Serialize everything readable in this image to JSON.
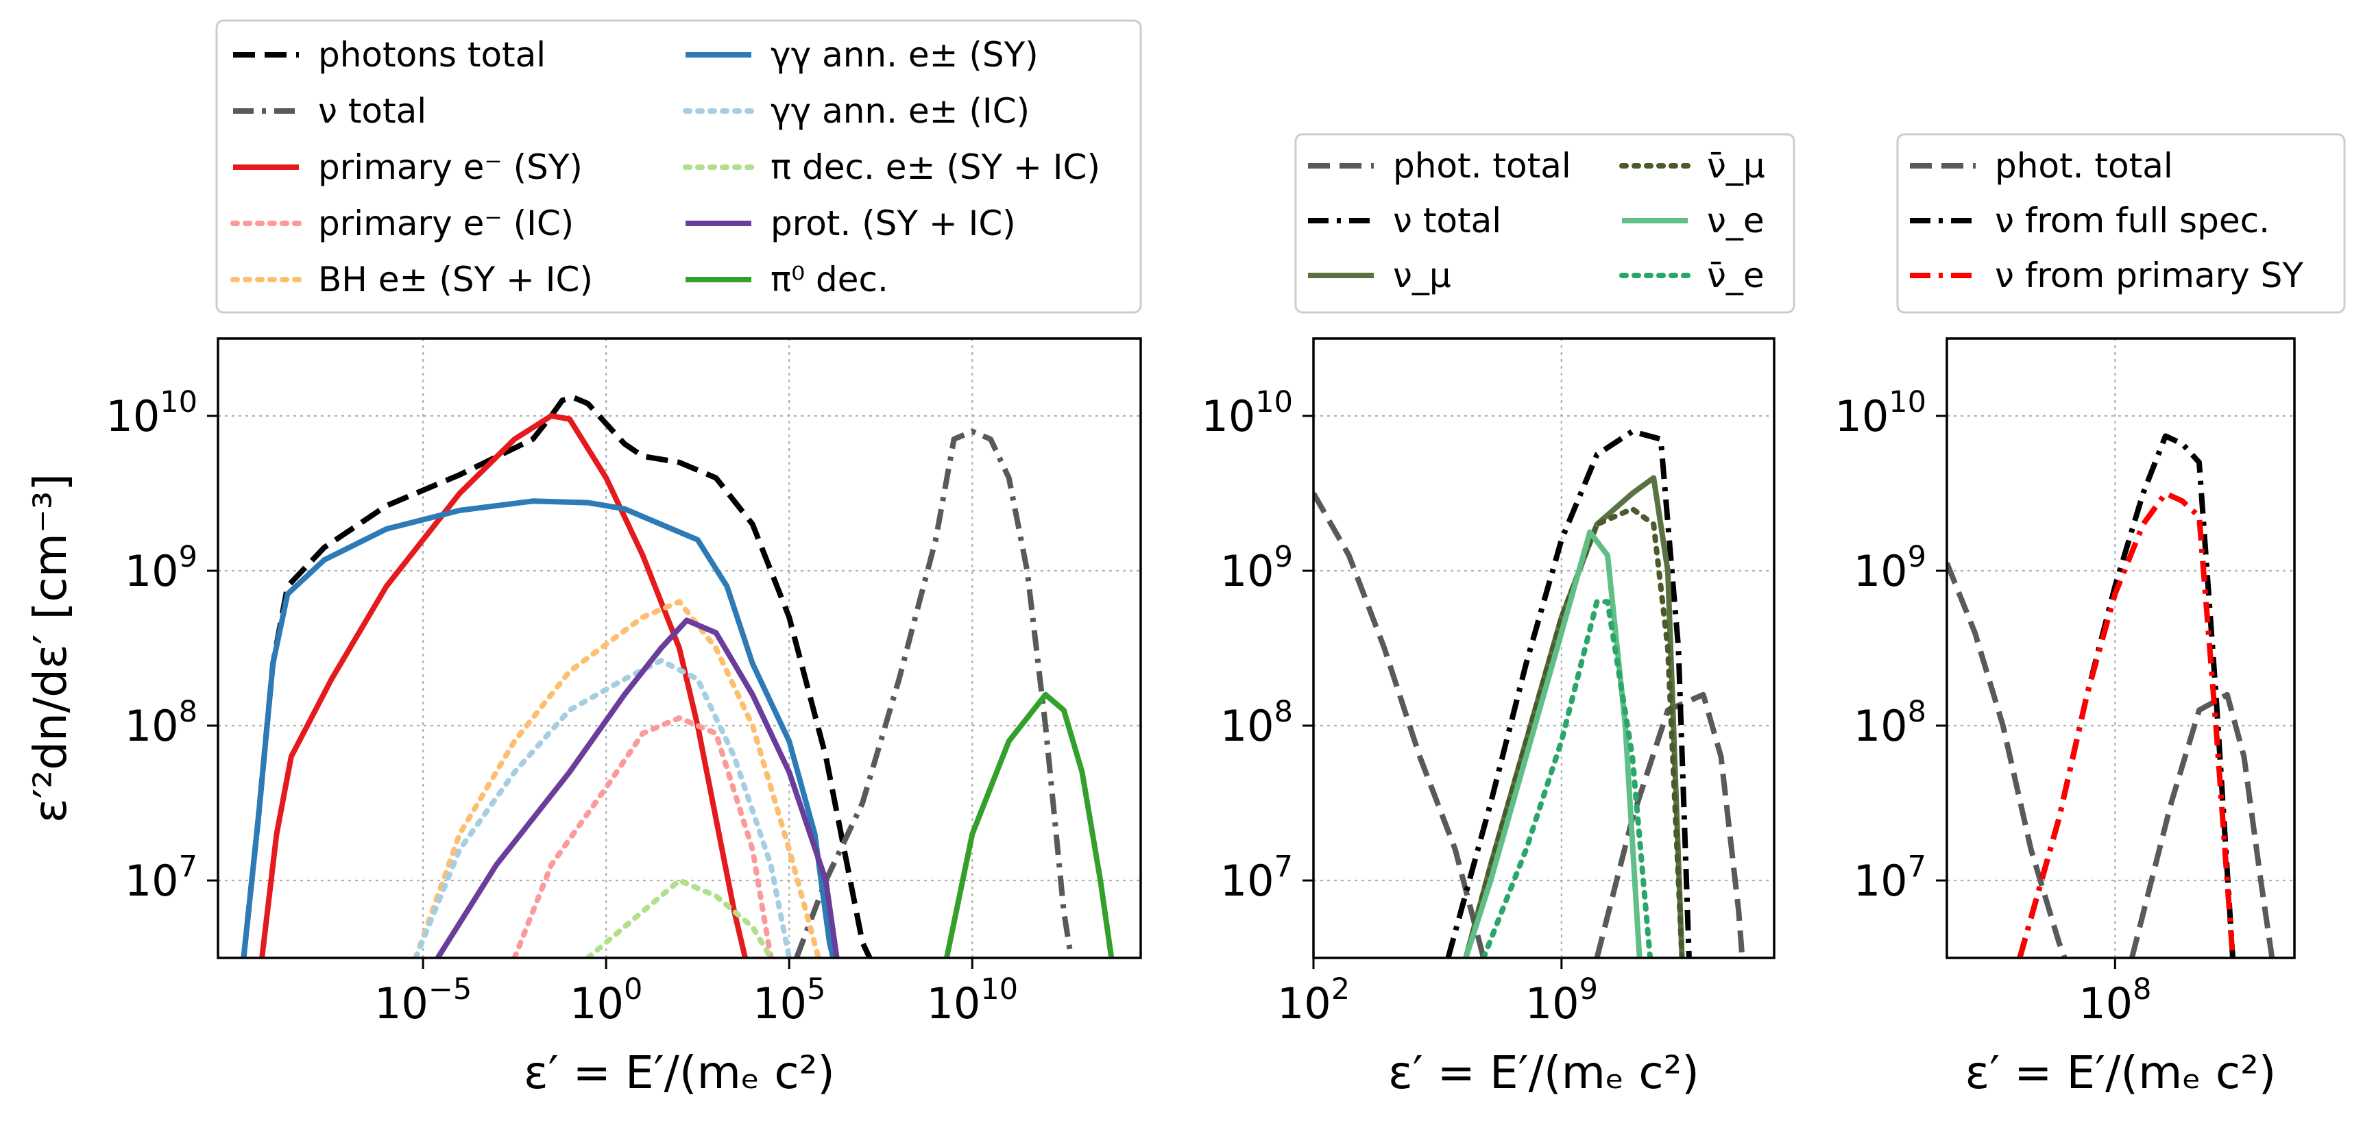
{
  "chart_data": [
    {
      "type": "line",
      "panel": "left",
      "xlabel": "ε′ = E′/(mₑ c²)",
      "ylabel": "ε′²dn/dε′ [cm⁻³]",
      "xscale": "log",
      "yscale": "log",
      "xlim_log10": [
        -10.6,
        14.6
      ],
      "ylim_log10": [
        6.5,
        10.5
      ],
      "xticks": [
        {
          "log10": -5,
          "base": "10",
          "exp": "−5"
        },
        {
          "log10": 0,
          "base": "10",
          "exp": "0"
        },
        {
          "log10": 5,
          "base": "10",
          "exp": "5"
        },
        {
          "log10": 10,
          "base": "10",
          "exp": "10"
        }
      ],
      "yticks": [
        {
          "log10": 7,
          "base": "10",
          "exp": "7"
        },
        {
          "log10": 8,
          "base": "10",
          "exp": "8"
        },
        {
          "log10": 9,
          "base": "10",
          "exp": "9"
        },
        {
          "log10": 10,
          "base": "10",
          "exp": "10"
        }
      ],
      "grid": true,
      "legend_placement": "above",
      "legend_columns": 2,
      "series": [
        {
          "name": "photons total",
          "color": "#000000",
          "style": "dashed",
          "points": [
            [
              -9.9,
              6.5
            ],
            [
              -9.5,
              7.4
            ],
            [
              -9.1,
              8.4
            ],
            [
              -8.7,
              8.9
            ],
            [
              -7.7,
              9.15
            ],
            [
              -6,
              9.42
            ],
            [
              -4,
              9.62
            ],
            [
              -2,
              9.85
            ],
            [
              -1.5,
              10
            ],
            [
              -1.2,
              10.1
            ],
            [
              -0.9,
              10.12
            ],
            [
              -0.5,
              10.08
            ],
            [
              0,
              9.95
            ],
            [
              0.5,
              9.82
            ],
            [
              1,
              9.74
            ],
            [
              2,
              9.7
            ],
            [
              3,
              9.6
            ],
            [
              4,
              9.3
            ],
            [
              5,
              8.7
            ],
            [
              6,
              7.8
            ],
            [
              6.5,
              7.2
            ],
            [
              7,
              6.6
            ],
            [
              7.2,
              6.5
            ]
          ]
        },
        {
          "name": "ν total",
          "color": "#595959",
          "style": "dashdot",
          "points": [
            [
              5.2,
              6.5
            ],
            [
              6,
              7
            ],
            [
              7,
              7.5
            ],
            [
              8,
              8.3
            ],
            [
              9,
              9.2
            ],
            [
              9.5,
              9.85
            ],
            [
              10,
              9.9
            ],
            [
              10.5,
              9.85
            ],
            [
              11,
              9.6
            ],
            [
              11.5,
              9
            ],
            [
              12,
              8
            ],
            [
              12.5,
              6.8
            ],
            [
              12.7,
              6.5
            ]
          ]
        },
        {
          "name": "primary e⁻ (SY)",
          "color": "#e41a1c",
          "style": "solid",
          "points": [
            [
              -9.4,
              6.5
            ],
            [
              -9,
              7.3
            ],
            [
              -8.6,
              7.8
            ],
            [
              -7.5,
              8.3
            ],
            [
              -6,
              8.9
            ],
            [
              -4,
              9.5
            ],
            [
              -2.5,
              9.85
            ],
            [
              -1.5,
              10
            ],
            [
              -1,
              9.98
            ],
            [
              0,
              9.6
            ],
            [
              1,
              9.1
            ],
            [
              2,
              8.5
            ],
            [
              2.5,
              8
            ],
            [
              3,
              7.4
            ],
            [
              3.5,
              6.8
            ],
            [
              3.8,
              6.5
            ]
          ]
        },
        {
          "name": "primary e⁻ (IC)",
          "color": "#fb9a99",
          "style": "dotted",
          "points": [
            [
              -2.5,
              6.5
            ],
            [
              -1.5,
              7.1
            ],
            [
              0,
              7.6
            ],
            [
              1,
              7.95
            ],
            [
              2,
              8.05
            ],
            [
              3,
              7.95
            ],
            [
              4,
              7.2
            ],
            [
              4.5,
              6.5
            ]
          ]
        },
        {
          "name": "BH e± (SY + IC)",
          "color": "#fdbf6f",
          "style": "dotted",
          "points": [
            [
              -5.2,
              6.5
            ],
            [
              -4,
              7.3
            ],
            [
              -2.5,
              7.9
            ],
            [
              -1,
              8.35
            ],
            [
              1,
              8.7
            ],
            [
              2,
              8.8
            ],
            [
              3,
              8.5
            ],
            [
              4,
              8
            ],
            [
              5,
              7.2
            ],
            [
              5.8,
              6.5
            ]
          ]
        },
        {
          "name": "γγ ann. e± (SY)",
          "color": "#2c7bb6",
          "style": "solid",
          "points": [
            [
              -9.9,
              6.5
            ],
            [
              -9.5,
              7.4
            ],
            [
              -9.1,
              8.4
            ],
            [
              -8.7,
              8.85
            ],
            [
              -7.7,
              9.07
            ],
            [
              -6,
              9.27
            ],
            [
              -4,
              9.39
            ],
            [
              -2,
              9.45
            ],
            [
              -0.5,
              9.44
            ],
            [
              0.5,
              9.4
            ],
            [
              1.5,
              9.3
            ],
            [
              2.5,
              9.2
            ],
            [
              3.3,
              8.9
            ],
            [
              4,
              8.4
            ],
            [
              5,
              7.9
            ],
            [
              5.7,
              7.3
            ],
            [
              6.1,
              6.6
            ],
            [
              6.2,
              6.5
            ]
          ]
        },
        {
          "name": "γγ ann. e± (IC)",
          "color": "#a6cee3",
          "style": "dotted",
          "points": [
            [
              -5.2,
              6.5
            ],
            [
              -4,
              7.2
            ],
            [
              -2.5,
              7.7
            ],
            [
              -1,
              8.1
            ],
            [
              0.5,
              8.3
            ],
            [
              1.5,
              8.42
            ],
            [
              2.5,
              8.3
            ],
            [
              3.5,
              7.8
            ],
            [
              4.5,
              7.1
            ],
            [
              5,
              6.5
            ]
          ]
        },
        {
          "name": "π dec. e± (SY + IC)",
          "color": "#b2df8a",
          "style": "dotted",
          "points": [
            [
              -0.5,
              6.5
            ],
            [
              1,
              6.8
            ],
            [
              2,
              7
            ],
            [
              3,
              6.9
            ],
            [
              4,
              6.7
            ],
            [
              4.5,
              6.5
            ]
          ]
        },
        {
          "name": "prot. (SY + IC)",
          "color": "#6a3d9a",
          "style": "solid",
          "points": [
            [
              -4.6,
              6.5
            ],
            [
              -3,
              7.1
            ],
            [
              -1,
              7.7
            ],
            [
              0.5,
              8.2
            ],
            [
              1.5,
              8.5
            ],
            [
              2.2,
              8.68
            ],
            [
              3,
              8.6
            ],
            [
              4,
              8.2
            ],
            [
              5,
              7.7
            ],
            [
              6,
              7
            ],
            [
              6.3,
              6.5
            ]
          ]
        },
        {
          "name": "π⁰ dec.",
          "color": "#33a02c",
          "style": "solid",
          "points": [
            [
              9.3,
              6.5
            ],
            [
              10,
              7.3
            ],
            [
              11,
              7.9
            ],
            [
              12,
              8.2
            ],
            [
              12.5,
              8.1
            ],
            [
              13,
              7.7
            ],
            [
              13.5,
              7
            ],
            [
              13.8,
              6.5
            ]
          ]
        }
      ]
    },
    {
      "type": "line",
      "panel": "middle",
      "xlabel": "ε′ = E′/(mₑ c²)",
      "xscale": "log",
      "yscale": "log",
      "xlim_log10": [
        2,
        15
      ],
      "ylim_log10": [
        6.5,
        10.5
      ],
      "xticks": [
        {
          "log10": 2,
          "base": "10",
          "exp": "2"
        },
        {
          "log10": 9,
          "base": "10",
          "exp": "9"
        }
      ],
      "yticks": [
        {
          "log10": 7,
          "base": "10",
          "exp": "7"
        },
        {
          "log10": 8,
          "base": "10",
          "exp": "8"
        },
        {
          "log10": 9,
          "base": "10",
          "exp": "9"
        },
        {
          "log10": 10,
          "base": "10",
          "exp": "10"
        }
      ],
      "grid": true,
      "legend_placement": "above",
      "legend_columns": 2,
      "series": [
        {
          "name": "phot. total",
          "color": "#595959",
          "style": "dashed",
          "points": [
            [
              2,
              9.5
            ],
            [
              3,
              9.1
            ],
            [
              4,
              8.5
            ],
            [
              5,
              7.8
            ],
            [
              6,
              7.2
            ],
            [
              6.8,
              6.5
            ]
          ],
          "points2": [
            [
              10,
              6.5
            ],
            [
              11,
              7.4
            ],
            [
              12,
              8.1
            ],
            [
              13,
              8.2
            ],
            [
              13.5,
              7.8
            ],
            [
              14,
              6.8
            ],
            [
              14.1,
              6.5
            ]
          ]
        },
        {
          "name": "ν total",
          "color": "#000000",
          "style": "dashdot",
          "points": [
            [
              5.8,
              6.5
            ],
            [
              7,
              7.5
            ],
            [
              8,
              8.4
            ],
            [
              9,
              9.2
            ],
            [
              10,
              9.75
            ],
            [
              11,
              9.9
            ],
            [
              11.8,
              9.85
            ],
            [
              12.3,
              8.5
            ],
            [
              12.6,
              6.5
            ]
          ]
        },
        {
          "name": "ν_μ",
          "color": "#5a7241",
          "style": "solid",
          "points": [
            [
              6.3,
              6.5
            ],
            [
              7,
              7.1
            ],
            [
              8,
              7.9
            ],
            [
              9,
              8.7
            ],
            [
              10,
              9.3
            ],
            [
              11,
              9.5
            ],
            [
              11.6,
              9.6
            ],
            [
              12,
              9
            ],
            [
              12.4,
              6.5
            ]
          ]
        },
        {
          "name": "ν̄_μ",
          "color": "#4a5a2a",
          "style": "dotted",
          "points": [
            [
              6.3,
              6.5
            ],
            [
              7,
              7.1
            ],
            [
              8,
              7.9
            ],
            [
              9,
              8.7
            ],
            [
              10,
              9.3
            ],
            [
              11,
              9.4
            ],
            [
              11.6,
              9.3
            ],
            [
              12,
              8.5
            ],
            [
              12.4,
              6.5
            ]
          ]
        },
        {
          "name": "ν_e",
          "color": "#5fbf86",
          "style": "solid",
          "points": [
            [
              6.3,
              6.5
            ],
            [
              7,
              7
            ],
            [
              8,
              7.8
            ],
            [
              9,
              8.6
            ],
            [
              9.8,
              9.25
            ],
            [
              10.3,
              9.1
            ],
            [
              10.8,
              8
            ],
            [
              11.2,
              6.5
            ]
          ]
        },
        {
          "name": "ν̄_e",
          "color": "#2aa66a",
          "style": "dotted",
          "points": [
            [
              6.8,
              6.5
            ],
            [
              8,
              7.2
            ],
            [
              9,
              7.9
            ],
            [
              10,
              8.8
            ],
            [
              10.3,
              8.8
            ],
            [
              11,
              7.8
            ],
            [
              11.5,
              6.5
            ]
          ]
        }
      ]
    },
    {
      "type": "line",
      "panel": "right",
      "xlabel": "ε′ = E′/(mₑ c²)",
      "xscale": "log",
      "yscale": "log",
      "xlim_log10": [
        5,
        11.2
      ],
      "ylim_log10": [
        6.5,
        10.5
      ],
      "xticks": [
        {
          "log10": 8,
          "base": "10",
          "exp": "8"
        }
      ],
      "yticks": [
        {
          "log10": 7,
          "base": "10",
          "exp": "7"
        },
        {
          "log10": 8,
          "base": "10",
          "exp": "8"
        },
        {
          "log10": 9,
          "base": "10",
          "exp": "9"
        },
        {
          "log10": 10,
          "base": "10",
          "exp": "10"
        }
      ],
      "grid": true,
      "legend_placement": "above",
      "legend_columns": 1,
      "series": [
        {
          "name": "phot. total",
          "color": "#595959",
          "style": "dashed",
          "points": [
            [
              5,
              9.05
            ],
            [
              5.5,
              8.6
            ],
            [
              6,
              8
            ],
            [
              6.5,
              7.2
            ],
            [
              7,
              6.6
            ],
            [
              7.1,
              6.5
            ]
          ],
          "points2": [
            [
              8.3,
              6.5
            ],
            [
              9,
              7.5
            ],
            [
              9.5,
              8.1
            ],
            [
              10,
              8.2
            ],
            [
              10.3,
              7.8
            ],
            [
              10.6,
              7
            ],
            [
              10.8,
              6.5
            ]
          ]
        },
        {
          "name": "ν from full spec.",
          "color": "#000000",
          "style": "dashdot",
          "points": [
            [
              6.3,
              6.5
            ],
            [
              7,
              7.4
            ],
            [
              7.5,
              8.2
            ],
            [
              8,
              8.9
            ],
            [
              8.5,
              9.5
            ],
            [
              8.9,
              9.87
            ],
            [
              9.2,
              9.82
            ],
            [
              9.5,
              9.7
            ],
            [
              9.8,
              8.2
            ],
            [
              10.1,
              6.5
            ]
          ]
        },
        {
          "name": "ν from primary SY",
          "color": "#ff0000",
          "style": "dashdot",
          "points": [
            [
              6.3,
              6.5
            ],
            [
              7,
              7.4
            ],
            [
              7.5,
              8.2
            ],
            [
              8,
              8.85
            ],
            [
              8.5,
              9.3
            ],
            [
              8.9,
              9.5
            ],
            [
              9.2,
              9.45
            ],
            [
              9.5,
              9.35
            ],
            [
              9.8,
              8
            ],
            [
              10.1,
              6.5
            ]
          ]
        }
      ]
    }
  ]
}
